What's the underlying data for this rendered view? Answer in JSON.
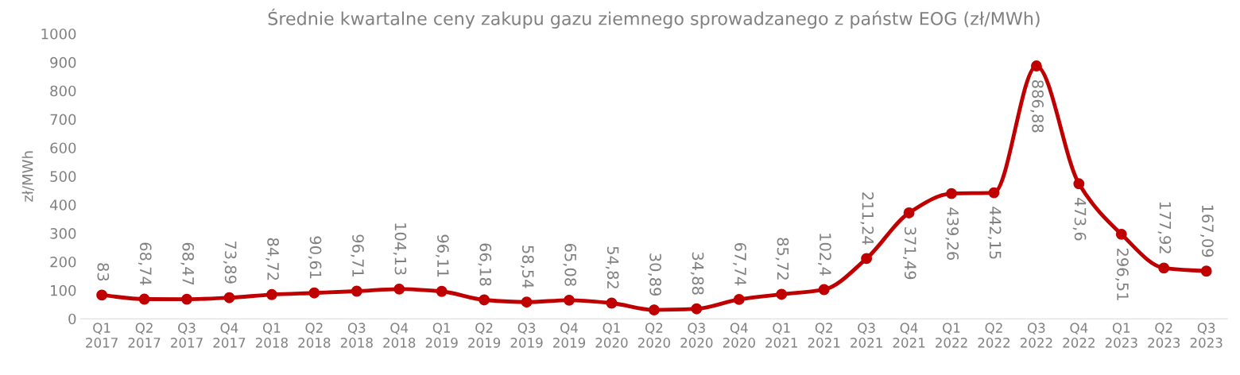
{
  "chart_data": {
    "type": "line",
    "title": "Średnie kwartalne ceny zakupu gazu ziemnego sprowadzanego z państw EOG (zł/MWh)",
    "ylabel": "zł/MWh",
    "categories": [
      "Q1\n2017",
      "Q2\n2017",
      "Q3\n2017",
      "Q4\n2017",
      "Q1\n2018",
      "Q2\n2018",
      "Q3\n2018",
      "Q4\n2018",
      "Q1\n2019",
      "Q2\n2019",
      "Q3\n2019",
      "Q4\n2019",
      "Q1\n2020",
      "Q2\n2020",
      "Q3\n2020",
      "Q4\n2020",
      "Q1\n2021",
      "Q2\n2021",
      "Q3\n2021",
      "Q4\n2021",
      "Q1\n2022",
      "Q2\n2022",
      "Q3\n2022",
      "Q4\n2022",
      "Q1\n2023",
      "Q2\n2023",
      "Q3\n2023"
    ],
    "series": [
      {
        "color": "#c00000",
        "values": [
          83,
          68.74,
          68.47,
          73.89,
          84.72,
          90.61,
          96.71,
          104.13,
          96.11,
          66.18,
          58.54,
          65.08,
          54.82,
          30.89,
          34.88,
          67.74,
          85.72,
          102.4,
          211.24,
          371.49,
          439.26,
          442.15,
          886.88,
          473.6,
          296.51,
          177.92,
          167.09
        ],
        "value_labels": [
          "83",
          "68,74",
          "68,47",
          "73,89",
          "84,72",
          "90,61",
          "96,71",
          "104,13",
          "96,11",
          "66,18",
          "58,54",
          "65,08",
          "54,82",
          "30,89",
          "34,88",
          "67,74",
          "85,72",
          "102,4",
          "211,24",
          "371,49",
          "439,26",
          "442,15",
          "886,88",
          "473,6",
          "296,51",
          "177,92",
          "167,09"
        ]
      }
    ],
    "ylim": [
      0,
      1000
    ],
    "yticks": [
      0,
      100,
      200,
      300,
      400,
      500,
      600,
      700,
      800,
      900,
      1000
    ],
    "grid": false,
    "legend": false,
    "marker": "circle",
    "line_style": "solid"
  }
}
